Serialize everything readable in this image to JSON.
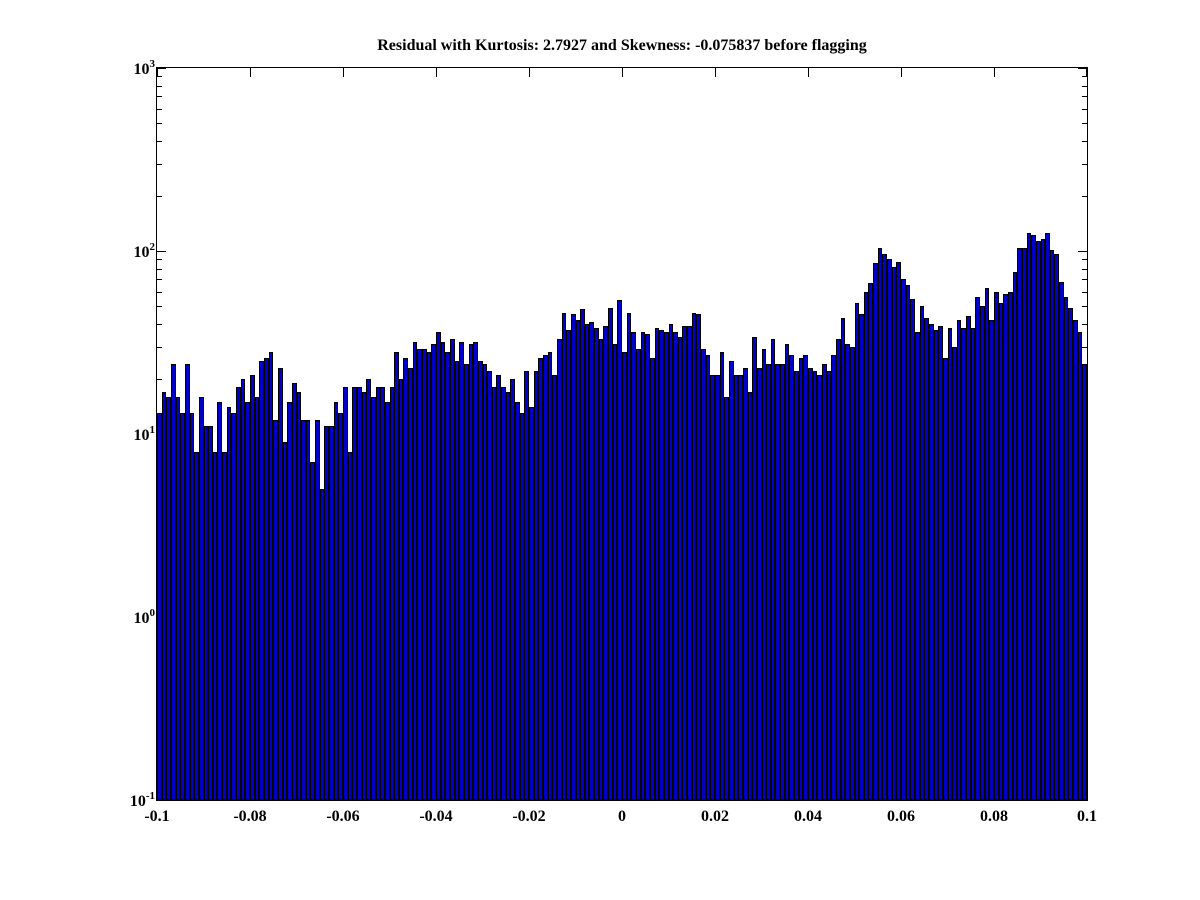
{
  "figure": {
    "background_color": "#ffffff",
    "axis_color": "#000000"
  },
  "chart_data": {
    "type": "bar",
    "subtype": "histogram",
    "title": "Residual with Kurtosis: 2.7927 and Skewness: -0.075837 before flagging",
    "xlabel": "",
    "ylabel": "",
    "x_range": [
      -0.1,
      0.1
    ],
    "n_bins": 200,
    "bin_start": -0.1,
    "bin_width": 0.001,
    "y_scale": "log10",
    "ylim": [
      0.1,
      1000
    ],
    "grid": false,
    "legend": null,
    "box": true,
    "x_tick_values": [
      -0.1,
      -0.08,
      -0.06,
      -0.04,
      -0.02,
      0,
      0.02,
      0.04,
      0.06,
      0.08,
      0.1
    ],
    "x_tick_labels": [
      "-0.1",
      "-0.08",
      "-0.06",
      "-0.04",
      "-0.02",
      "0",
      "0.02",
      "0.04",
      "0.06",
      "0.08",
      "0.1"
    ],
    "y_tick_base": "10",
    "y_tick_exponents": [
      "3",
      "2",
      "1",
      "0",
      "-1"
    ],
    "bar_color": "#0000C8",
    "bar_edge_color": "#000000",
    "values": [
      13,
      17,
      16,
      24,
      16,
      13,
      24,
      13,
      8,
      16,
      11,
      11,
      8,
      15,
      8,
      14,
      13,
      18,
      20,
      15,
      21,
      16,
      25,
      26,
      28,
      12,
      23,
      9,
      15,
      19,
      17,
      12,
      12,
      7,
      12,
      5,
      11,
      11,
      15,
      13,
      18,
      8,
      18,
      18,
      17,
      20,
      16,
      18,
      18,
      15,
      18,
      28,
      20,
      26,
      23,
      32,
      29,
      29,
      28,
      31,
      36,
      32,
      28,
      33,
      25,
      32,
      24,
      31,
      32,
      25,
      24,
      22,
      18,
      21,
      18,
      17,
      20,
      15,
      13,
      22,
      14,
      22,
      26,
      27,
      28,
      21,
      33,
      46,
      37,
      45,
      42,
      48,
      40,
      41,
      38,
      33,
      39,
      49,
      31,
      54,
      28,
      46,
      36,
      29,
      36,
      35,
      26,
      38,
      37,
      36,
      40,
      36,
      34,
      39,
      39,
      46,
      45,
      29,
      27,
      21,
      21,
      28,
      16,
      25,
      21,
      21,
      23,
      17,
      34,
      23,
      29,
      24,
      33,
      24,
      24,
      31,
      27,
      22,
      26,
      27,
      23,
      22,
      21,
      24,
      22,
      27,
      33,
      43,
      31,
      30,
      52,
      45,
      60,
      67,
      86,
      104,
      96,
      90,
      82,
      87,
      70,
      65,
      55,
      36,
      50,
      43,
      40,
      37,
      39,
      26,
      38,
      30,
      42,
      38,
      44,
      38,
      56,
      50,
      63,
      42,
      60,
      52,
      58,
      60,
      77,
      104,
      104,
      125,
      122,
      114,
      117,
      125,
      101,
      96,
      68,
      56,
      49,
      42,
      36,
      24
    ]
  }
}
